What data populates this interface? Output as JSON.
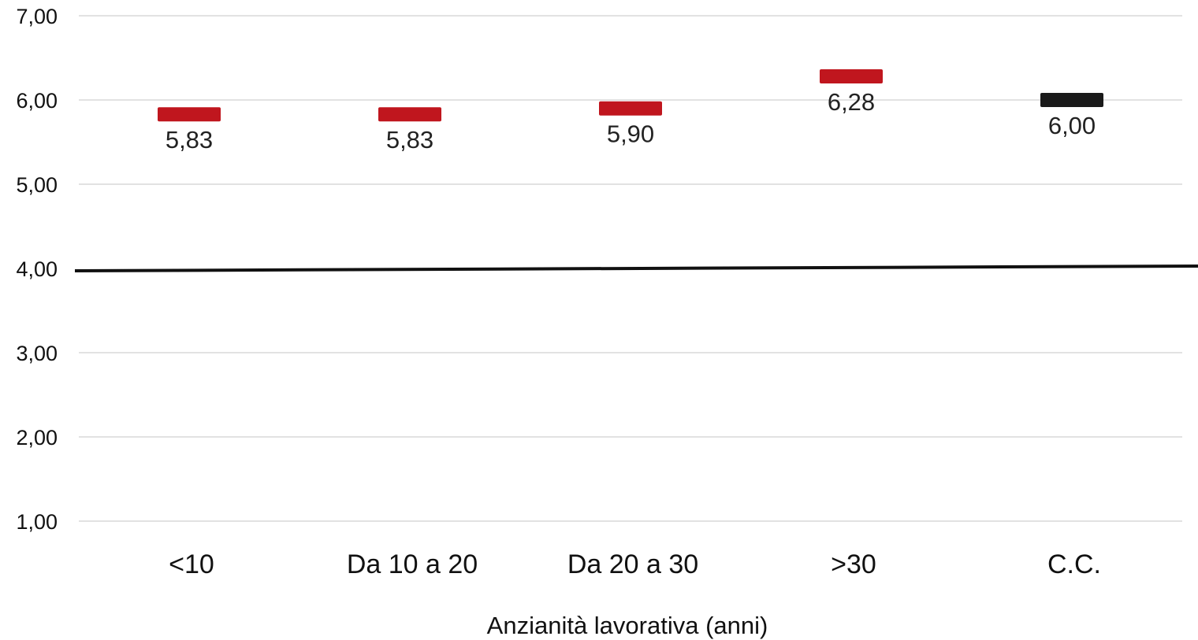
{
  "chart_data": {
    "type": "scatter",
    "title": "",
    "xlabel": "Anzianità lavorativa (anni)",
    "ylabel": "",
    "ylim": [
      1,
      7
    ],
    "yticks": [
      1,
      2,
      3,
      4,
      5,
      6,
      7
    ],
    "ytick_labels": [
      "1,00",
      "2,00",
      "3,00",
      "4,00",
      "5,00",
      "6,00",
      "7,00"
    ],
    "grid": true,
    "reference_line": {
      "value": 4,
      "color": "#111111"
    },
    "categories": [
      "<10",
      "Da 10 a 20",
      "Da 20 a 30",
      ">30",
      "C.C."
    ],
    "values": [
      5.83,
      5.83,
      5.9,
      6.28,
      6.0
    ],
    "value_labels": [
      "5,83",
      "5,83",
      "5,90",
      "6,28",
      "6,00"
    ],
    "marker": "dash",
    "marker_colors": [
      "#c0161e",
      "#c0161e",
      "#c0161e",
      "#c0161e",
      "#1a1a1a"
    ]
  }
}
